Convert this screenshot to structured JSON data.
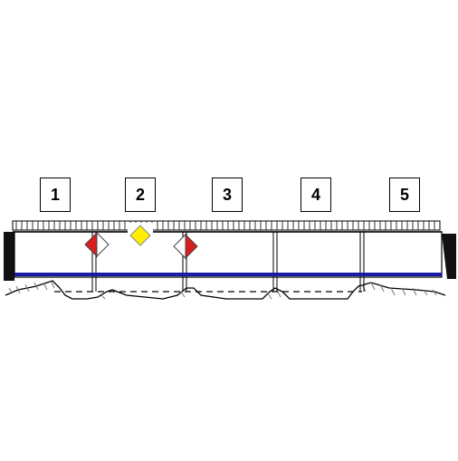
{
  "span_labels": [
    "1",
    "2",
    "3",
    "4",
    "5"
  ],
  "colors": {
    "background": "#ffffff",
    "outline": "#000000",
    "water_line": "#1a1aa8",
    "marker_red": "#d81e1e",
    "marker_white": "#ffffff",
    "marker_yellow": "#ffee00",
    "abutment": "#111111"
  },
  "markers": [
    {
      "span": 1,
      "kind": "red-white-diamond",
      "side": "left-red"
    },
    {
      "span": 2,
      "kind": "yellow-diamond"
    },
    {
      "span": 3,
      "kind": "red-white-diamond",
      "side": "right-red"
    }
  ]
}
